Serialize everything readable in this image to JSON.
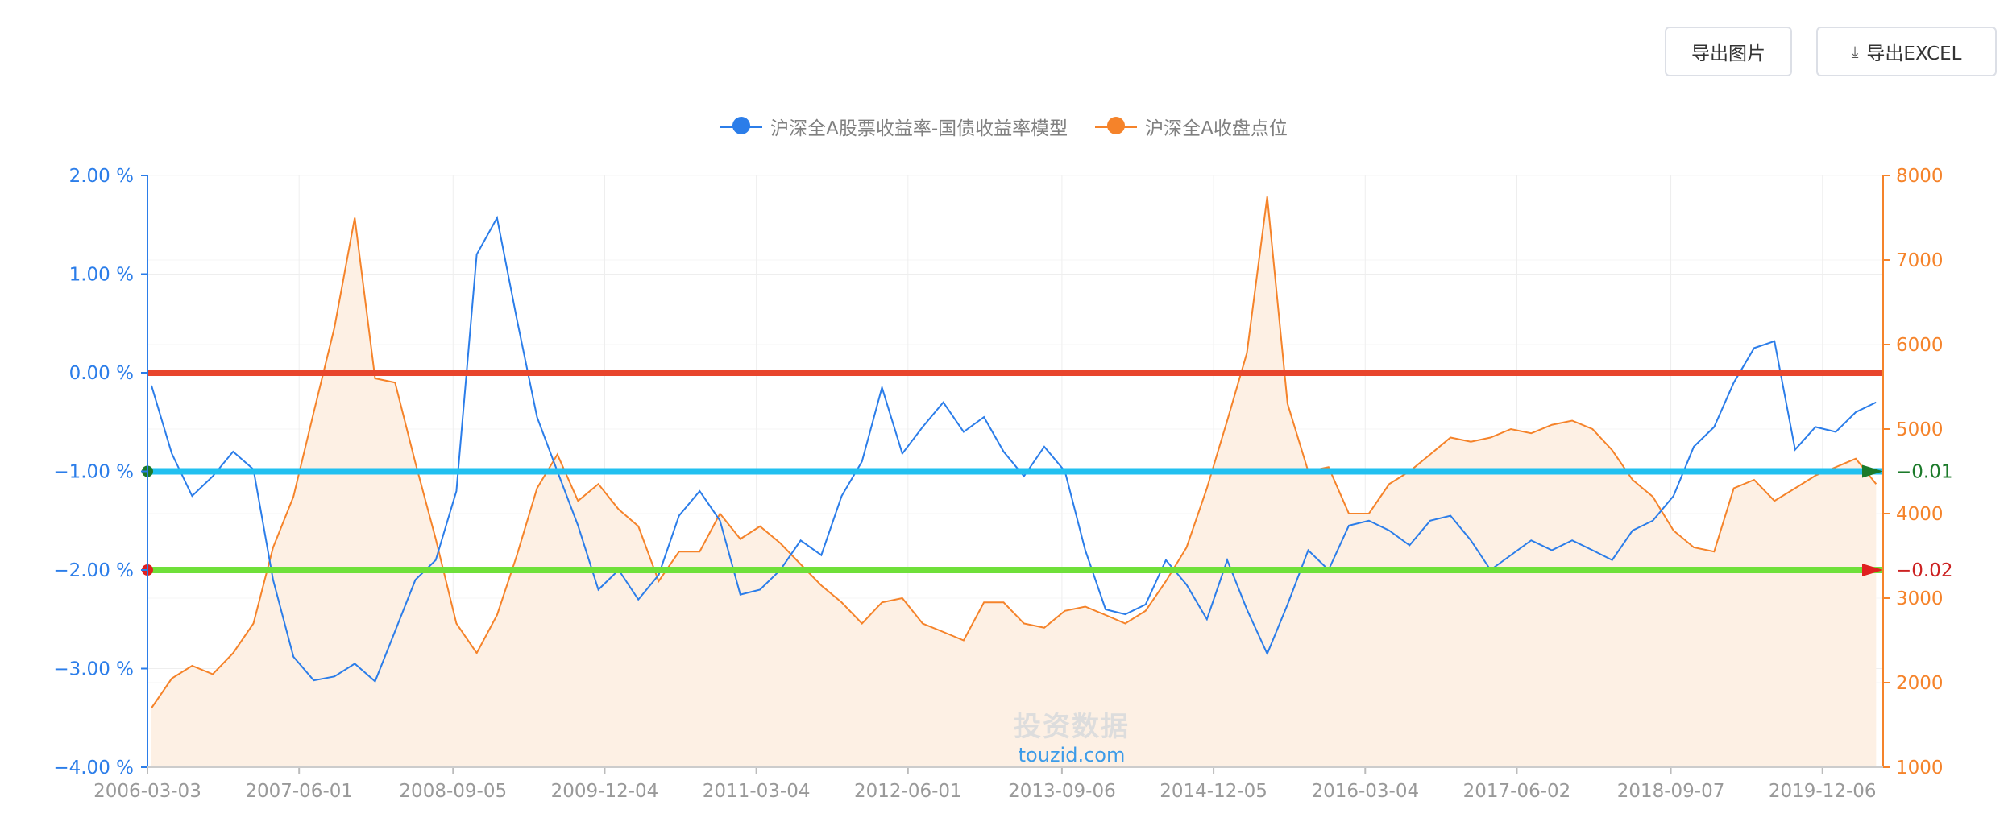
{
  "toolbar": {
    "export_image_label": "导出图片",
    "export_excel_label": "导出EXCEL",
    "download_icon": "download-icon"
  },
  "watermark": {
    "cn": "投资数据",
    "en": "touzid.com"
  },
  "colors": {
    "series_model": "#2b7de9",
    "series_index": "#f5832a",
    "index_area": "#fdf0e4",
    "axis_left": "#2b7de9",
    "axis_right": "#f5832a",
    "ref_zero": "#e8452c",
    "ref_minus1": "#22c0f0",
    "ref_minus2": "#6fe03a",
    "grid": "#eeeeee",
    "tick_x": "#999999"
  },
  "chart_data": {
    "type": "line",
    "title": "",
    "legend_position": "top-center",
    "grid": true,
    "x_ticks": [
      "2006-03-03",
      "2007-06-01",
      "2008-09-05",
      "2009-12-04",
      "2011-03-04",
      "2012-06-01",
      "2013-09-06",
      "2014-12-05",
      "2016-03-04",
      "2017-06-02",
      "2018-09-07",
      "2019-12-06"
    ],
    "x_range": [
      "2006-03-03",
      "2020-06-05"
    ],
    "y_left": {
      "min": -4,
      "max": 2,
      "ticks": [
        "2.00 %",
        "1.00 %",
        "0.00 %",
        "−1.00 %",
        "−2.00 %",
        "−3.00 %",
        "−4.00 %"
      ]
    },
    "y_right": {
      "min": 1000,
      "max": 8000,
      "ticks": [
        "8000",
        "7000",
        "6000",
        "5000",
        "4000",
        "3000",
        "2000",
        "1000"
      ]
    },
    "series": [
      {
        "name": "沪深全A股票收益率-国债收益率模型",
        "axis": "left",
        "x": [
          "2006-03",
          "2006-05",
          "2006-07",
          "2006-09",
          "2006-11",
          "2007-01",
          "2007-03",
          "2007-05",
          "2007-07",
          "2007-09",
          "2007-11",
          "2008-01",
          "2008-03",
          "2008-05",
          "2008-07",
          "2008-09",
          "2008-11",
          "2009-01",
          "2009-03",
          "2009-05",
          "2009-07",
          "2009-09",
          "2009-11",
          "2010-01",
          "2010-03",
          "2010-05",
          "2010-07",
          "2010-09",
          "2010-11",
          "2011-01",
          "2011-03",
          "2011-05",
          "2011-07",
          "2011-09",
          "2011-11",
          "2012-01",
          "2012-03",
          "2012-05",
          "2012-07",
          "2012-09",
          "2012-11",
          "2013-01",
          "2013-03",
          "2013-05",
          "2013-07",
          "2013-09",
          "2013-11",
          "2014-01",
          "2014-03",
          "2014-05",
          "2014-07",
          "2014-09",
          "2014-11",
          "2015-01",
          "2015-03",
          "2015-05",
          "2015-07",
          "2015-09",
          "2015-11",
          "2016-01",
          "2016-03",
          "2016-05",
          "2016-07",
          "2016-09",
          "2016-11",
          "2017-01",
          "2017-03",
          "2017-05",
          "2017-07",
          "2017-09",
          "2017-11",
          "2018-01",
          "2018-03",
          "2018-05",
          "2018-07",
          "2018-09",
          "2018-11",
          "2019-01",
          "2019-03",
          "2019-05",
          "2019-07",
          "2019-09",
          "2019-11",
          "2020-01",
          "2020-03",
          "2020-05"
        ],
        "values": [
          -0.13,
          -0.82,
          -1.25,
          -1.05,
          -0.8,
          -0.98,
          -2.1,
          -2.88,
          -3.12,
          -3.08,
          -2.95,
          -3.13,
          -2.62,
          -2.1,
          -1.9,
          -1.2,
          1.2,
          1.57,
          0.55,
          -0.45,
          -1.0,
          -1.55,
          -2.2,
          -2.0,
          -2.3,
          -2.05,
          -1.45,
          -1.2,
          -1.5,
          -2.25,
          -2.2,
          -2.0,
          -1.7,
          -1.85,
          -1.25,
          -0.9,
          -0.15,
          -0.82,
          -0.55,
          -0.3,
          -0.6,
          -0.45,
          -0.8,
          -1.05,
          -0.75,
          -1.0,
          -1.8,
          -2.4,
          -2.45,
          -2.35,
          -1.9,
          -2.15,
          -2.5,
          -1.9,
          -2.4,
          -2.85,
          -2.35,
          -1.8,
          -2.0,
          -1.55,
          -1.5,
          -1.6,
          -1.75,
          -1.5,
          -1.45,
          -1.7,
          -2.0,
          -1.85,
          -1.7,
          -1.8,
          -1.7,
          -1.8,
          -1.9,
          -1.6,
          -1.5,
          -1.25,
          -0.75,
          -0.55,
          -0.1,
          0.25,
          0.32,
          -0.78,
          -0.55,
          -0.6,
          -0.4,
          -0.3
        ]
      },
      {
        "name": "沪深全A收盘点位",
        "axis": "right",
        "x": [
          "2006-03",
          "2006-05",
          "2006-07",
          "2006-09",
          "2006-11",
          "2007-01",
          "2007-03",
          "2007-05",
          "2007-07",
          "2007-09",
          "2007-11",
          "2008-01",
          "2008-03",
          "2008-05",
          "2008-07",
          "2008-09",
          "2008-11",
          "2009-01",
          "2009-03",
          "2009-05",
          "2009-07",
          "2009-09",
          "2009-11",
          "2010-01",
          "2010-03",
          "2010-05",
          "2010-07",
          "2010-09",
          "2010-11",
          "2011-01",
          "2011-03",
          "2011-05",
          "2011-07",
          "2011-09",
          "2011-11",
          "2012-01",
          "2012-03",
          "2012-05",
          "2012-07",
          "2012-09",
          "2012-11",
          "2013-01",
          "2013-03",
          "2013-05",
          "2013-07",
          "2013-09",
          "2013-11",
          "2014-01",
          "2014-03",
          "2014-05",
          "2014-07",
          "2014-09",
          "2014-11",
          "2015-01",
          "2015-03",
          "2015-05",
          "2015-07",
          "2015-09",
          "2015-11",
          "2016-01",
          "2016-03",
          "2016-05",
          "2016-07",
          "2016-09",
          "2016-11",
          "2017-01",
          "2017-03",
          "2017-05",
          "2017-07",
          "2017-09",
          "2017-11",
          "2018-01",
          "2018-03",
          "2018-05",
          "2018-07",
          "2018-09",
          "2018-11",
          "2019-01",
          "2019-03",
          "2019-05",
          "2019-07",
          "2019-09",
          "2019-11",
          "2020-01",
          "2020-03",
          "2020-05"
        ],
        "values": [
          1700,
          2050,
          2200,
          2100,
          2350,
          2700,
          3600,
          4200,
          5200,
          6200,
          7500,
          5600,
          5550,
          4600,
          3700,
          2700,
          2350,
          2800,
          3500,
          4300,
          4700,
          4150,
          4350,
          4050,
          3850,
          3200,
          3550,
          3550,
          4000,
          3700,
          3850,
          3650,
          3400,
          3150,
          2950,
          2700,
          2950,
          3000,
          2700,
          2600,
          2500,
          2950,
          2950,
          2700,
          2650,
          2850,
          2900,
          2800,
          2700,
          2850,
          3200,
          3600,
          4300,
          5100,
          5900,
          7750,
          5300,
          4500,
          4550,
          4000,
          4000,
          4350,
          4500,
          4700,
          4900,
          4850,
          4900,
          5000,
          4950,
          5050,
          5100,
          5000,
          4750,
          4400,
          4200,
          3800,
          3600,
          3550,
          4300,
          4400,
          4150,
          4300,
          4450,
          4550,
          4650,
          4350
        ]
      }
    ],
    "reference_lines": [
      {
        "value": 0.0,
        "axis": "left",
        "label": ""
      },
      {
        "value": -1.0,
        "axis": "left",
        "label": "−0.01"
      },
      {
        "value": -2.0,
        "axis": "left",
        "label": "−0.02"
      }
    ]
  }
}
